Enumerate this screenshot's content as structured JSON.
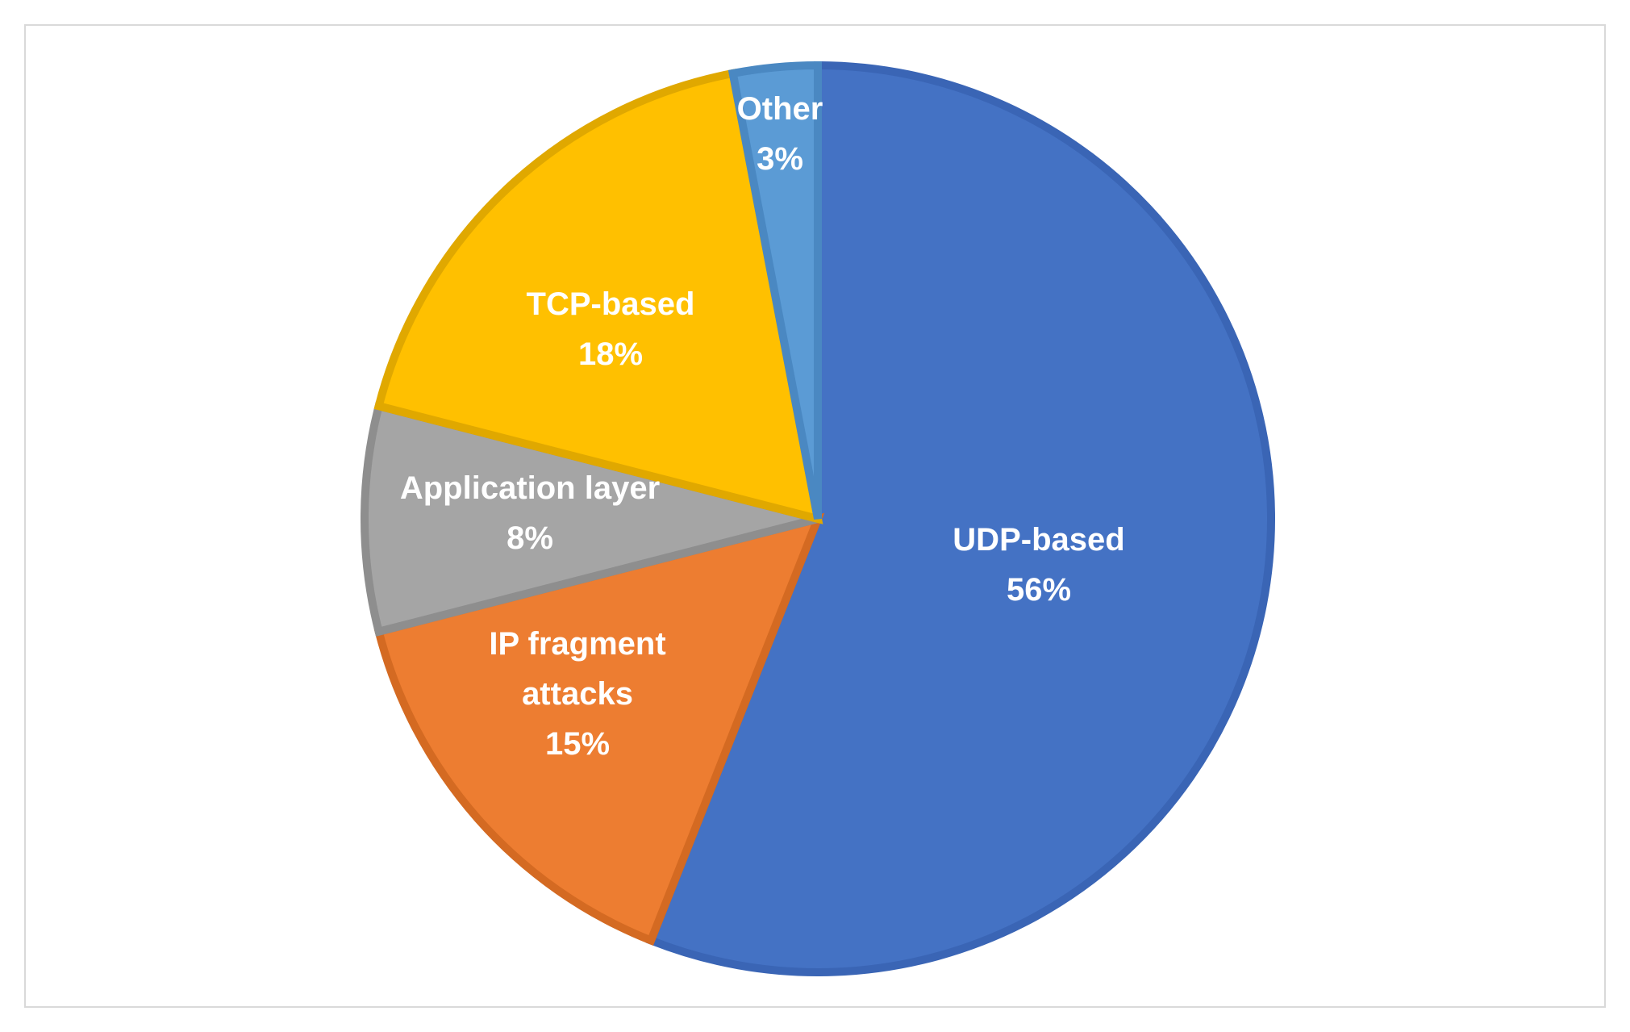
{
  "chart_data": {
    "type": "pie",
    "title": "",
    "start_angle_deg": 0,
    "direction": "clockwise",
    "slices": [
      {
        "label": "UDP-based",
        "value_label": "56%",
        "value": 56,
        "color": "#4472C4",
        "stroke": "#3A65B5"
      },
      {
        "label": "IP fragment attacks",
        "value_label": "15%",
        "value": 15,
        "color": "#ED7D31",
        "stroke": "#D46A22"
      },
      {
        "label": "Application layer",
        "value_label": "8%",
        "value": 8,
        "color": "#A5A5A5",
        "stroke": "#8E8E8E"
      },
      {
        "label": "TCP-based",
        "value_label": "18%",
        "value": 18,
        "color": "#FFC000",
        "stroke": "#E0A800"
      },
      {
        "label": "Other",
        "value_label": "3%",
        "value": 3,
        "color": "#5B9BD5",
        "stroke": "#4A88C2"
      }
    ],
    "label_lines": [
      [
        "UDP-based",
        "56%"
      ],
      [
        "IP fragment",
        "attacks",
        "15%"
      ],
      [
        "Application layer",
        "8%"
      ],
      [
        "TCP-based",
        "18%"
      ],
      [
        "Other",
        "3%"
      ]
    ],
    "legend": "none"
  }
}
